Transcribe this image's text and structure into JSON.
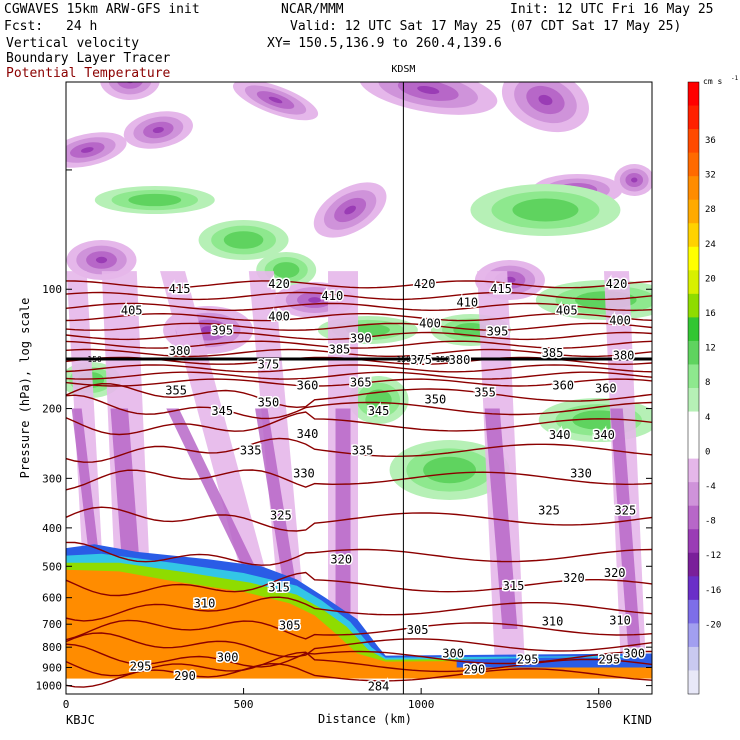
{
  "header": {
    "model": "CGWAVES 15km ARW-GFS init",
    "org": "NCAR/MMM",
    "init": "Init: 12 UTC Fri 16 May 25",
    "fcst_label": "Fcst:",
    "fcst_value": "24 h",
    "valid": "Valid: 12 UTC Sat 17 May 25 (07 CDT Sat 17 May 25)",
    "field1": "Vertical velocity",
    "field2": "Boundary Layer Tracer",
    "field3": "Potential Temperature",
    "xy": "XY= 150.5,136.9 to 260.4,139.6"
  },
  "colors": {
    "potential_temperature": "#8b0000",
    "field3_text": "#8b0000"
  },
  "chart_data": {
    "type": "heatmap",
    "xlabel": "Distance (km)",
    "ylabel": "Pressure (hPa), log scale",
    "x_ticks": [
      0,
      500,
      1000,
      1500
    ],
    "xlim": [
      0,
      1650
    ],
    "y_ticks": [
      100,
      200,
      300,
      400,
      500,
      600,
      700,
      800,
      900,
      1000
    ],
    "ylim": [
      1050,
      30
    ],
    "y_scale": "log",
    "left_station": "KBJC",
    "right_station": "KIND",
    "mid_station": "KDSM",
    "mid_station_x": 950,
    "colorbar": {
      "units": "cm s",
      "units_exp": "-1",
      "labels": [
        36,
        32,
        28,
        24,
        20,
        16,
        12,
        8,
        4,
        0,
        -4,
        -8,
        -12,
        -16,
        -20
      ],
      "colors": [
        "#e8e8f8",
        "#c9c9f0",
        "#a29ff0",
        "#7d6ee8",
        "#6a2fc8",
        "#7a1f9a",
        "#9a3cb5",
        "#b767c8",
        "#cf93da",
        "#e5b7ea",
        "#ffffff",
        "#ffffff",
        "#b6f0b6",
        "#8ee88e",
        "#5fd35f",
        "#33c633",
        "#8fdc00",
        "#d8f000",
        "#ffff00",
        "#ffd200",
        "#ffaa00",
        "#ff8c00",
        "#ff6a00",
        "#ff4a00",
        "#ff2000",
        "#ff0000"
      ]
    },
    "pot_temp_levels": [
      284,
      290,
      295,
      300,
      305,
      310,
      315,
      320,
      325,
      330,
      335,
      340,
      345,
      350,
      355,
      360,
      365,
      375,
      380,
      385,
      390,
      395,
      400,
      405,
      410,
      415,
      420
    ],
    "pot_temp_labels": [
      {
        "text": "420",
        "x": 600,
        "p": 97
      },
      {
        "text": "415",
        "x": 320,
        "p": 100
      },
      {
        "text": "405",
        "x": 185,
        "p": 113
      },
      {
        "text": "410",
        "x": 750,
        "p": 104
      },
      {
        "text": "400",
        "x": 600,
        "p": 117
      },
      {
        "text": "395",
        "x": 440,
        "p": 127
      },
      {
        "text": "390",
        "x": 830,
        "p": 133
      },
      {
        "text": "380",
        "x": 320,
        "p": 143
      },
      {
        "text": "375",
        "x": 570,
        "p": 155
      },
      {
        "text": "385",
        "x": 770,
        "p": 142
      },
      {
        "text": "365",
        "x": 830,
        "p": 172
      },
      {
        "text": "360",
        "x": 680,
        "p": 175
      },
      {
        "text": "355",
        "x": 310,
        "p": 180
      },
      {
        "text": "350",
        "x": 570,
        "p": 193
      },
      {
        "text": "345",
        "x": 440,
        "p": 203
      },
      {
        "text": "345",
        "x": 880,
        "p": 203
      },
      {
        "text": "340",
        "x": 680,
        "p": 232
      },
      {
        "text": "335",
        "x": 520,
        "p": 255
      },
      {
        "text": "335",
        "x": 835,
        "p": 255
      },
      {
        "text": "330",
        "x": 670,
        "p": 292
      },
      {
        "text": "325",
        "x": 605,
        "p": 372
      },
      {
        "text": "320",
        "x": 775,
        "p": 480
      },
      {
        "text": "315",
        "x": 600,
        "p": 565
      },
      {
        "text": "310",
        "x": 390,
        "p": 620
      },
      {
        "text": "305",
        "x": 630,
        "p": 705
      },
      {
        "text": "300",
        "x": 455,
        "p": 850
      },
      {
        "text": "295",
        "x": 210,
        "p": 895
      },
      {
        "text": "290",
        "x": 335,
        "p": 945
      },
      {
        "text": "284",
        "x": 880,
        "p": 1005
      },
      {
        "text": "420",
        "x": 1010,
        "p": 97
      },
      {
        "text": "415",
        "x": 1225,
        "p": 100
      },
      {
        "text": "420",
        "x": 1550,
        "p": 97
      },
      {
        "text": "410",
        "x": 1130,
        "p": 108
      },
      {
        "text": "405",
        "x": 1410,
        "p": 113
      },
      {
        "text": "400",
        "x": 1025,
        "p": 122
      },
      {
        "text": "400",
        "x": 1560,
        "p": 120
      },
      {
        "text": "395",
        "x": 1215,
        "p": 128
      },
      {
        "text": "385",
        "x": 1370,
        "p": 145
      },
      {
        "text": "380",
        "x": 1570,
        "p": 147
      },
      {
        "text": "380",
        "x": 1108,
        "p": 151
      },
      {
        "text": "375",
        "x": 1000,
        "p": 151
      },
      {
        "text": "360",
        "x": 1400,
        "p": 175
      },
      {
        "text": "360",
        "x": 1520,
        "p": 178
      },
      {
        "text": "355",
        "x": 1180,
        "p": 182
      },
      {
        "text": "350",
        "x": 1040,
        "p": 190
      },
      {
        "text": "340",
        "x": 1390,
        "p": 233
      },
      {
        "text": "340",
        "x": 1515,
        "p": 233
      },
      {
        "text": "330",
        "x": 1450,
        "p": 292
      },
      {
        "text": "325",
        "x": 1360,
        "p": 362
      },
      {
        "text": "325",
        "x": 1575,
        "p": 362
      },
      {
        "text": "320",
        "x": 1430,
        "p": 535
      },
      {
        "text": "320",
        "x": 1545,
        "p": 520
      },
      {
        "text": "315",
        "x": 1260,
        "p": 560
      },
      {
        "text": "310",
        "x": 1370,
        "p": 690
      },
      {
        "text": "310",
        "x": 1560,
        "p": 685
      },
      {
        "text": "305",
        "x": 990,
        "p": 725
      },
      {
        "text": "300",
        "x": 1090,
        "p": 830
      },
      {
        "text": "295",
        "x": 1300,
        "p": 860
      },
      {
        "text": "295",
        "x": 1530,
        "p": 860
      },
      {
        "text": "290",
        "x": 1150,
        "p": 910
      },
      {
        "text": "300",
        "x": 1600,
        "p": 830
      }
    ],
    "tropopause_label": "150",
    "tropopause_p": 150
  }
}
